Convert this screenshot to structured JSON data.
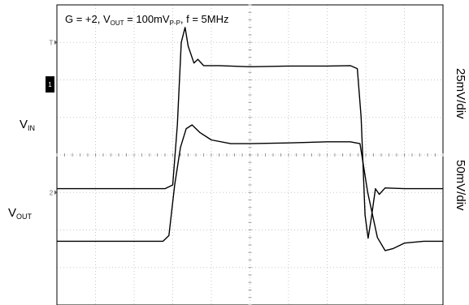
{
  "chart_data": {
    "type": "line",
    "title": {
      "gain": "G = +2, V",
      "vout_sub": "OUT",
      "vout_eq": " = 100mV",
      "vpp_sub": "P-P",
      "freq": ", f = 5MHz"
    },
    "grid": true,
    "divisions": {
      "x": 10,
      "y": 8
    },
    "time_unit": "div",
    "x_range": [
      0,
      10
    ],
    "series": [
      {
        "label_main": "V",
        "label_sub": "IN",
        "scale": "25mV/div",
        "y_range": [
          -4,
          4
        ],
        "points": [
          [
            0.0,
            -0.9
          ],
          [
            1.5,
            -0.9
          ],
          [
            2.8,
            -0.9
          ],
          [
            3.0,
            -0.8
          ],
          [
            3.12,
            0.8
          ],
          [
            3.22,
            3.0
          ],
          [
            3.32,
            3.4
          ],
          [
            3.4,
            2.9
          ],
          [
            3.55,
            2.45
          ],
          [
            3.65,
            2.55
          ],
          [
            3.8,
            2.38
          ],
          [
            4.2,
            2.38
          ],
          [
            5.0,
            2.35
          ],
          [
            6.0,
            2.37
          ],
          [
            7.0,
            2.37
          ],
          [
            7.6,
            2.38
          ],
          [
            7.78,
            2.3
          ],
          [
            7.88,
            1.0
          ],
          [
            7.98,
            -1.6
          ],
          [
            8.06,
            -2.22
          ],
          [
            8.14,
            -1.7
          ],
          [
            8.25,
            -0.9
          ],
          [
            8.35,
            -1.05
          ],
          [
            8.5,
            -0.88
          ],
          [
            9.0,
            -0.9
          ],
          [
            10.0,
            -0.9
          ]
        ]
      },
      {
        "label_main": "V",
        "label_sub": "OUT",
        "scale": "50mV/div",
        "y_range": [
          -4,
          4
        ],
        "points": [
          [
            0.0,
            -2.3
          ],
          [
            1.5,
            -2.3
          ],
          [
            2.75,
            -2.3
          ],
          [
            2.9,
            -2.15
          ],
          [
            3.05,
            -0.8
          ],
          [
            3.2,
            0.2
          ],
          [
            3.35,
            0.7
          ],
          [
            3.5,
            0.8
          ],
          [
            3.7,
            0.6
          ],
          [
            4.0,
            0.4
          ],
          [
            4.5,
            0.3
          ],
          [
            5.0,
            0.3
          ],
          [
            6.0,
            0.32
          ],
          [
            7.0,
            0.35
          ],
          [
            7.6,
            0.35
          ],
          [
            7.85,
            0.3
          ],
          [
            8.05,
            -1.0
          ],
          [
            8.3,
            -2.2
          ],
          [
            8.5,
            -2.55
          ],
          [
            8.7,
            -2.5
          ],
          [
            9.0,
            -2.35
          ],
          [
            9.5,
            -2.3
          ],
          [
            10.0,
            -2.3
          ]
        ]
      }
    ],
    "markers": [
      {
        "name": "ch1-trigger-marker",
        "glyph": "T",
        "level": 3.0
      },
      {
        "name": "ch1-ground-marker",
        "glyph": "1",
        "level": 1.88
      },
      {
        "name": "ch2-ground-marker",
        "glyph": "2",
        "level": -1.0
      }
    ]
  }
}
